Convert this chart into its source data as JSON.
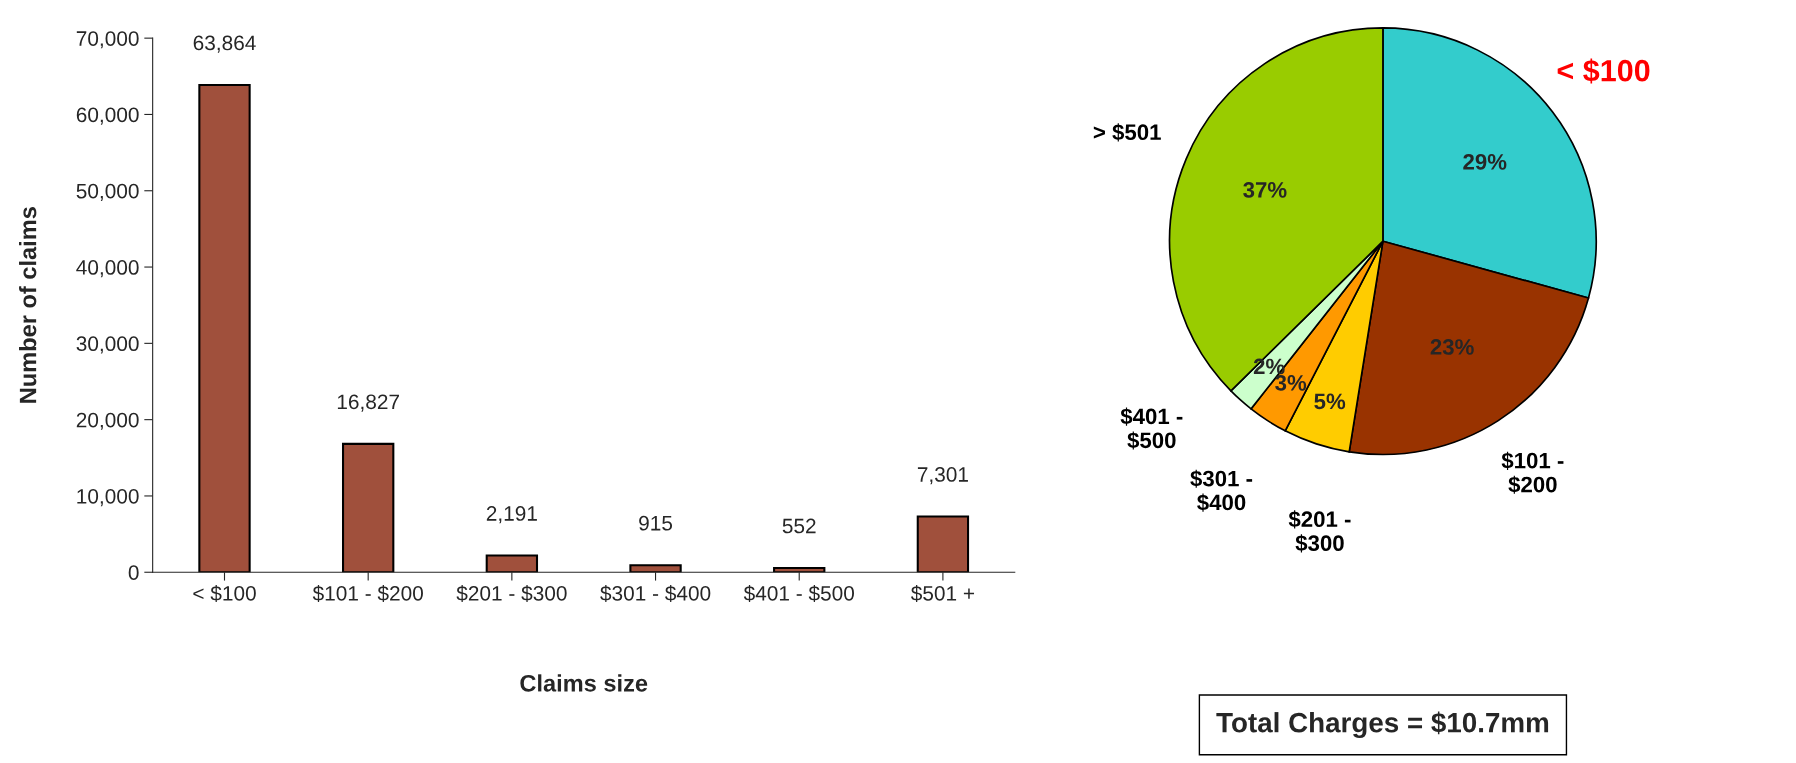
{
  "chart_data": [
    {
      "type": "bar",
      "xlabel": "Claims size",
      "ylabel": "Number of claims",
      "categories": [
        "< $100",
        "$101 - $200",
        "$201 - $300",
        "$301 - $400",
        "$401 - $500",
        "$501 +"
      ],
      "values": [
        63864,
        16827,
        2191,
        915,
        552,
        7301
      ],
      "color": "#a0503c",
      "value_labels": [
        "63,864",
        "16,827",
        "2,191",
        "915",
        "552",
        "7,301"
      ],
      "ylim": [
        0,
        70000
      ],
      "yticks": [
        0,
        {
          "value": 10000,
          "label": "10,000"
        },
        {
          "value": 20000,
          "label": "20,000"
        },
        {
          "value": 30000,
          "label": "30,000"
        },
        {
          "value": 40000,
          "label": "40,000"
        },
        {
          "value": 50000,
          "label": "50,000"
        },
        {
          "value": 60000,
          "label": "60,000"
        },
        {
          "value": 70000,
          "label": "70,000"
        }
      ],
      "grid": false
    },
    {
      "type": "pie",
      "categories": [
        "< $100",
        "$101 - $200",
        "$201 - $300",
        "$301 - $400",
        "$401 - $500",
        "> $501"
      ],
      "values": [
        29,
        23,
        5,
        3,
        2,
        37
      ],
      "colors": [
        "#33cccc",
        "#993300",
        "#ffcc00",
        "#ff9900",
        "#ccffcc",
        "#99cc00"
      ],
      "value_labels": [
        "29%",
        "23%",
        "5%",
        "3%",
        "2%",
        "37%"
      ],
      "annotations": [
        "Total Charges = $10.7mm"
      ]
    }
  ]
}
